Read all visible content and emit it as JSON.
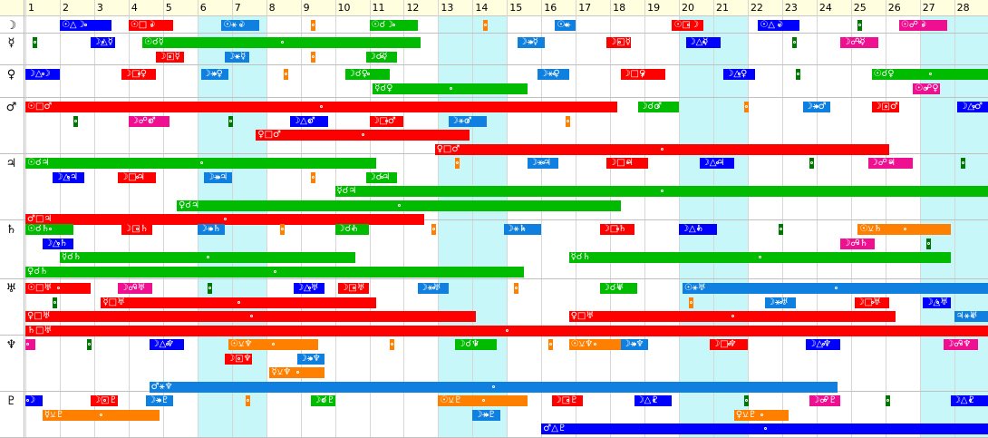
{
  "day_labels": [
    "1",
    "2",
    "3",
    "4",
    "5",
    "6",
    "7",
    "8",
    "9",
    "10",
    "11",
    "12",
    "13",
    "14",
    "15",
    "16",
    "17",
    "18",
    "19",
    "20",
    "21",
    "22",
    "23",
    "24",
    "25",
    "26",
    "27",
    "28"
  ],
  "planet_labels": [
    "☽",
    "☿",
    "♀",
    "♂",
    "♃",
    "♄",
    "♅",
    "♆",
    "♇"
  ],
  "weekend_days": [
    6,
    7,
    13,
    14,
    20,
    21,
    27,
    28
  ],
  "colors": {
    "red": "#ff0000",
    "green": "#00bb00",
    "blue": "#0000ff",
    "azure": "#1080e0",
    "orange": "#ff8000",
    "magenta": "#ee1090",
    "darkgreen": "#007700",
    "weekend": "#c8f7fa",
    "header": "#ffffdf"
  },
  "events": [
    {
      "row": 0,
      "lane": 0,
      "start": 2.0,
      "end": 3.5,
      "color": "blue",
      "label": "☉△☽"
    },
    {
      "row": 0,
      "lane": 0,
      "start": 4.0,
      "end": 5.3,
      "color": "red",
      "label": "☉□☽"
    },
    {
      "row": 0,
      "lane": 0,
      "start": 6.7,
      "end": 7.8,
      "color": "azure",
      "label": "☉⚹☽"
    },
    {
      "row": 0,
      "lane": 0,
      "start": 9.3,
      "end": 9.4,
      "color": "orange",
      "label": ""
    },
    {
      "row": 0,
      "lane": 0,
      "start": 11.0,
      "end": 12.4,
      "color": "green",
      "label": "☉☌☽"
    },
    {
      "row": 0,
      "lane": 0,
      "start": 14.3,
      "end": 14.4,
      "color": "orange",
      "label": ""
    },
    {
      "row": 0,
      "lane": 0,
      "start": 16.4,
      "end": 17.0,
      "color": "azure",
      "label": "☉⚹"
    },
    {
      "row": 0,
      "lane": 0,
      "start": 19.8,
      "end": 20.7,
      "color": "red",
      "label": "☉□☽"
    },
    {
      "row": 0,
      "lane": 0,
      "start": 22.3,
      "end": 23.5,
      "color": "blue",
      "label": "☉△☽"
    },
    {
      "row": 0,
      "lane": 0,
      "start": 25.2,
      "end": 25.3,
      "color": "darkgreen",
      "label": ""
    },
    {
      "row": 0,
      "lane": 0,
      "start": 26.4,
      "end": 27.8,
      "color": "magenta",
      "label": "☉☍☽"
    },
    {
      "row": 1,
      "lane": 0,
      "start": 1.2,
      "end": 1.3,
      "color": "darkgreen",
      "label": ""
    },
    {
      "row": 1,
      "lane": 0,
      "start": 2.9,
      "end": 3.6,
      "color": "blue",
      "label": "☽△☿"
    },
    {
      "row": 1,
      "lane": 0,
      "start": 4.4,
      "end": 12.5,
      "color": "green",
      "label": "☉☌☿"
    },
    {
      "row": 1,
      "lane": 0,
      "start": 15.3,
      "end": 16.1,
      "color": "azure",
      "label": "☽⚹☿"
    },
    {
      "row": 1,
      "lane": 0,
      "start": 17.9,
      "end": 18.6,
      "color": "red",
      "label": "☽□☿"
    },
    {
      "row": 1,
      "lane": 0,
      "start": 20.2,
      "end": 21.2,
      "color": "blue",
      "label": "☽△☿"
    },
    {
      "row": 1,
      "lane": 0,
      "start": 23.3,
      "end": 23.4,
      "color": "darkgreen",
      "label": ""
    },
    {
      "row": 1,
      "lane": 0,
      "start": 24.7,
      "end": 25.8,
      "color": "magenta",
      "label": "☽☍☿"
    },
    {
      "row": 1,
      "lane": 1,
      "start": 4.8,
      "end": 5.6,
      "color": "red",
      "label": "☽□☿"
    },
    {
      "row": 1,
      "lane": 1,
      "start": 6.8,
      "end": 7.5,
      "color": "azure",
      "label": "☽⚹☿"
    },
    {
      "row": 1,
      "lane": 1,
      "start": 9.3,
      "end": 9.4,
      "color": "orange",
      "label": ""
    },
    {
      "row": 1,
      "lane": 1,
      "start": 10.9,
      "end": 11.8,
      "color": "green",
      "label": "☽☌☿"
    },
    {
      "row": 2,
      "lane": 0,
      "start": 1.0,
      "end": 2.0,
      "color": "blue",
      "label": "☽△☽"
    },
    {
      "row": 2,
      "lane": 0,
      "start": 3.8,
      "end": 4.8,
      "color": "red",
      "label": "☽□♀"
    },
    {
      "row": 2,
      "lane": 0,
      "start": 6.1,
      "end": 6.9,
      "color": "azure",
      "label": "☽⚹♀"
    },
    {
      "row": 2,
      "lane": 0,
      "start": 8.5,
      "end": 8.6,
      "color": "orange",
      "label": ""
    },
    {
      "row": 2,
      "lane": 0,
      "start": 10.3,
      "end": 11.6,
      "color": "green",
      "label": "☽☌♀"
    },
    {
      "row": 2,
      "lane": 0,
      "start": 15.9,
      "end": 16.8,
      "color": "azure",
      "label": "☽⚹♀"
    },
    {
      "row": 2,
      "lane": 0,
      "start": 18.3,
      "end": 19.6,
      "color": "red",
      "label": "☽□♀"
    },
    {
      "row": 2,
      "lane": 0,
      "start": 21.3,
      "end": 22.2,
      "color": "blue",
      "label": "☽△♀"
    },
    {
      "row": 2,
      "lane": 0,
      "start": 23.4,
      "end": 23.5,
      "color": "darkgreen",
      "label": ""
    },
    {
      "row": 2,
      "lane": 0,
      "start": 25.6,
      "end": 29.0,
      "color": "green",
      "label": "☉☌♀"
    },
    {
      "row": 2,
      "lane": 1,
      "start": 11.1,
      "end": 15.6,
      "color": "green",
      "label": "☿☌♀"
    },
    {
      "row": 2,
      "lane": 1,
      "start": 26.8,
      "end": 27.6,
      "color": "magenta",
      "label": "☉☍♀"
    },
    {
      "row": 3,
      "lane": 0,
      "start": 1.0,
      "end": 18.2,
      "color": "red",
      "label": "☉□♂"
    },
    {
      "row": 3,
      "lane": 0,
      "start": 18.8,
      "end": 20.0,
      "color": "green",
      "label": "☽☌♂"
    },
    {
      "row": 3,
      "lane": 0,
      "start": 21.9,
      "end": 22.0,
      "color": "orange",
      "label": ""
    },
    {
      "row": 3,
      "lane": 0,
      "start": 23.6,
      "end": 24.4,
      "color": "azure",
      "label": "☽⚹♂"
    },
    {
      "row": 3,
      "lane": 0,
      "start": 25.6,
      "end": 26.4,
      "color": "red",
      "label": "☽□♂"
    },
    {
      "row": 3,
      "lane": 0,
      "start": 28.1,
      "end": 29.0,
      "color": "blue",
      "label": "☽△♂"
    },
    {
      "row": 3,
      "lane": 1,
      "start": 2.4,
      "end": 2.5,
      "color": "darkgreen",
      "label": ""
    },
    {
      "row": 3,
      "lane": 1,
      "start": 4.0,
      "end": 5.2,
      "color": "magenta",
      "label": "☽☍♂"
    },
    {
      "row": 3,
      "lane": 1,
      "start": 6.9,
      "end": 7.0,
      "color": "darkgreen",
      "label": ""
    },
    {
      "row": 3,
      "lane": 1,
      "start": 8.7,
      "end": 9.8,
      "color": "blue",
      "label": "☽△♂"
    },
    {
      "row": 3,
      "lane": 1,
      "start": 11.0,
      "end": 12.0,
      "color": "red",
      "label": "☽□♂"
    },
    {
      "row": 3,
      "lane": 1,
      "start": 13.3,
      "end": 14.4,
      "color": "azure",
      "label": "☽⚹♂"
    },
    {
      "row": 3,
      "lane": 1,
      "start": 16.7,
      "end": 16.8,
      "color": "orange",
      "label": ""
    },
    {
      "row": 3,
      "lane": 2,
      "start": 7.7,
      "end": 13.9,
      "color": "red",
      "label": "♀□♂"
    },
    {
      "row": 3,
      "lane": 3,
      "start": 12.9,
      "end": 26.1,
      "color": "red",
      "label": "♀□♂"
    },
    {
      "row": 4,
      "lane": 0,
      "start": 1.0,
      "end": 11.2,
      "color": "green",
      "label": "☉☌♃"
    },
    {
      "row": 4,
      "lane": 0,
      "start": 13.5,
      "end": 13.6,
      "color": "orange",
      "label": ""
    },
    {
      "row": 4,
      "lane": 0,
      "start": 15.6,
      "end": 16.5,
      "color": "azure",
      "label": "☽⚹♃"
    },
    {
      "row": 4,
      "lane": 0,
      "start": 17.9,
      "end": 19.1,
      "color": "red",
      "label": "☽□♃"
    },
    {
      "row": 4,
      "lane": 0,
      "start": 20.6,
      "end": 21.6,
      "color": "blue",
      "label": "☽△♃"
    },
    {
      "row": 4,
      "lane": 0,
      "start": 23.8,
      "end": 23.9,
      "color": "darkgreen",
      "label": ""
    },
    {
      "row": 4,
      "lane": 0,
      "start": 25.5,
      "end": 26.8,
      "color": "magenta",
      "label": "☽☍♃"
    },
    {
      "row": 4,
      "lane": 0,
      "start": 28.2,
      "end": 28.3,
      "color": "darkgreen",
      "label": ""
    },
    {
      "row": 4,
      "lane": 1,
      "start": 1.8,
      "end": 2.7,
      "color": "blue",
      "label": "☽△♃"
    },
    {
      "row": 4,
      "lane": 1,
      "start": 3.7,
      "end": 4.8,
      "color": "red",
      "label": "☽□♃"
    },
    {
      "row": 4,
      "lane": 1,
      "start": 6.2,
      "end": 7.0,
      "color": "azure",
      "label": "☽⚹♃"
    },
    {
      "row": 4,
      "lane": 1,
      "start": 9.3,
      "end": 9.4,
      "color": "orange",
      "label": ""
    },
    {
      "row": 4,
      "lane": 1,
      "start": 10.9,
      "end": 11.8,
      "color": "green",
      "label": "☽☌♃"
    },
    {
      "row": 4,
      "lane": 2,
      "start": 10.0,
      "end": 29.0,
      "color": "green",
      "label": "☿☌♃"
    },
    {
      "row": 4,
      "lane": 3,
      "start": 5.4,
      "end": 18.3,
      "color": "green",
      "label": "♀☌♃"
    },
    {
      "row": 4,
      "lane": 4,
      "start": 1.0,
      "end": 12.6,
      "color": "red",
      "label": "♂□♃"
    },
    {
      "row": 5,
      "lane": 0,
      "start": 1.0,
      "end": 2.4,
      "color": "green",
      "label": "☉☌♄"
    },
    {
      "row": 5,
      "lane": 0,
      "start": 3.8,
      "end": 4.7,
      "color": "red",
      "label": "☽□♄"
    },
    {
      "row": 5,
      "lane": 0,
      "start": 6.0,
      "end": 6.8,
      "color": "azure",
      "label": "☽⚹♄"
    },
    {
      "row": 5,
      "lane": 0,
      "start": 8.4,
      "end": 8.5,
      "color": "orange",
      "label": ""
    },
    {
      "row": 5,
      "lane": 0,
      "start": 10.0,
      "end": 11.0,
      "color": "green",
      "label": "☽☌♄"
    },
    {
      "row": 5,
      "lane": 0,
      "start": 12.8,
      "end": 12.9,
      "color": "orange",
      "label": ""
    },
    {
      "row": 5,
      "lane": 0,
      "start": 14.9,
      "end": 16.0,
      "color": "azure",
      "label": "☽⚹♄"
    },
    {
      "row": 5,
      "lane": 0,
      "start": 17.7,
      "end": 18.7,
      "color": "red",
      "label": "☽□♄"
    },
    {
      "row": 5,
      "lane": 0,
      "start": 20.0,
      "end": 21.1,
      "color": "blue",
      "label": "☽△♄"
    },
    {
      "row": 5,
      "lane": 0,
      "start": 22.9,
      "end": 23.0,
      "color": "darkgreen",
      "label": ""
    },
    {
      "row": 5,
      "lane": 0,
      "start": 25.2,
      "end": 27.9,
      "color": "orange",
      "label": "☉⚺♄"
    },
    {
      "row": 5,
      "lane": 1,
      "start": 1.5,
      "end": 2.4,
      "color": "blue",
      "label": "☽△♄"
    },
    {
      "row": 5,
      "lane": 1,
      "start": 24.7,
      "end": 25.7,
      "color": "magenta",
      "label": "☽☍♄"
    },
    {
      "row": 5,
      "lane": 1,
      "start": 27.2,
      "end": 27.3,
      "color": "darkgreen",
      "label": ""
    },
    {
      "row": 5,
      "lane": 2,
      "start": 2.0,
      "end": 10.6,
      "color": "green",
      "label": "☿☌♄"
    },
    {
      "row": 5,
      "lane": 2,
      "start": 16.8,
      "end": 27.9,
      "color": "green",
      "label": "☿☌♄"
    },
    {
      "row": 5,
      "lane": 3,
      "start": 1.0,
      "end": 15.5,
      "color": "green",
      "label": "♀☌♄"
    },
    {
      "row": 6,
      "lane": 0,
      "start": 1.0,
      "end": 2.9,
      "color": "red",
      "label": "☉□♅"
    },
    {
      "row": 6,
      "lane": 0,
      "start": 3.7,
      "end": 4.7,
      "color": "magenta",
      "label": "☽☍♅"
    },
    {
      "row": 6,
      "lane": 0,
      "start": 6.3,
      "end": 6.4,
      "color": "darkgreen",
      "label": ""
    },
    {
      "row": 6,
      "lane": 0,
      "start": 8.8,
      "end": 9.7,
      "color": "blue",
      "label": "☽△♅"
    },
    {
      "row": 6,
      "lane": 0,
      "start": 10.1,
      "end": 11.0,
      "color": "red",
      "label": "☽□♅"
    },
    {
      "row": 6,
      "lane": 0,
      "start": 12.4,
      "end": 13.3,
      "color": "azure",
      "label": "☽⚹♅"
    },
    {
      "row": 6,
      "lane": 0,
      "start": 15.2,
      "end": 15.3,
      "color": "orange",
      "label": ""
    },
    {
      "row": 6,
      "lane": 0,
      "start": 17.7,
      "end": 18.8,
      "color": "green",
      "label": "☽☌♅"
    },
    {
      "row": 6,
      "lane": 0,
      "start": 20.1,
      "end": 29.0,
      "color": "azure",
      "label": "☉⚹♅"
    },
    {
      "row": 6,
      "lane": 1,
      "start": 1.8,
      "end": 1.9,
      "color": "darkgreen",
      "label": ""
    },
    {
      "row": 6,
      "lane": 1,
      "start": 3.2,
      "end": 11.2,
      "color": "red",
      "label": "☿□♅"
    },
    {
      "row": 6,
      "lane": 1,
      "start": 20.3,
      "end": 20.4,
      "color": "orange",
      "label": ""
    },
    {
      "row": 6,
      "lane": 1,
      "start": 22.5,
      "end": 23.4,
      "color": "azure",
      "label": "☽⚹♅"
    },
    {
      "row": 6,
      "lane": 1,
      "start": 25.1,
      "end": 26.1,
      "color": "red",
      "label": "☽□♅"
    },
    {
      "row": 6,
      "lane": 1,
      "start": 27.1,
      "end": 27.9,
      "color": "blue",
      "label": "☽△♅"
    },
    {
      "row": 6,
      "lane": 2,
      "start": 1.0,
      "end": 14.1,
      "color": "red",
      "label": "♀□♅"
    },
    {
      "row": 6,
      "lane": 2,
      "start": 16.8,
      "end": 26.3,
      "color": "red",
      "label": "♀□♅"
    },
    {
      "row": 6,
      "lane": 2,
      "start": 28.0,
      "end": 29.0,
      "color": "azure",
      "label": "♃⚹♅"
    },
    {
      "row": 6,
      "lane": 3,
      "start": 1.0,
      "end": 29.0,
      "color": "red",
      "label": "♄□♅"
    },
    {
      "row": 7,
      "lane": 0,
      "start": 1.0,
      "end": 1.3,
      "color": "magenta",
      "label": ""
    },
    {
      "row": 7,
      "lane": 0,
      "start": 2.8,
      "end": 2.9,
      "color": "darkgreen",
      "label": ""
    },
    {
      "row": 7,
      "lane": 0,
      "start": 4.6,
      "end": 5.6,
      "color": "blue",
      "label": "☽△♆"
    },
    {
      "row": 7,
      "lane": 0,
      "start": 6.9,
      "end": 9.5,
      "color": "orange",
      "label": "☉⚺♆"
    },
    {
      "row": 7,
      "lane": 0,
      "start": 11.6,
      "end": 11.7,
      "color": "orange",
      "label": ""
    },
    {
      "row": 7,
      "lane": 0,
      "start": 13.5,
      "end": 14.7,
      "color": "green",
      "label": "☽☌♆"
    },
    {
      "row": 7,
      "lane": 0,
      "start": 16.2,
      "end": 16.3,
      "color": "orange",
      "label": ""
    },
    {
      "row": 7,
      "lane": 0,
      "start": 16.8,
      "end": 18.3,
      "color": "orange",
      "label": "☉⚺♆"
    },
    {
      "row": 7,
      "lane": 0,
      "start": 18.3,
      "end": 19.1,
      "color": "azure",
      "label": "☽⚹♆"
    },
    {
      "row": 7,
      "lane": 0,
      "start": 20.9,
      "end": 22.0,
      "color": "red",
      "label": "☽□♆"
    },
    {
      "row": 7,
      "lane": 0,
      "start": 23.7,
      "end": 24.7,
      "color": "blue",
      "label": "☽△♆"
    },
    {
      "row": 7,
      "lane": 0,
      "start": 27.7,
      "end": 28.7,
      "color": "magenta",
      "label": "☽☍♆"
    },
    {
      "row": 7,
      "lane": 1,
      "start": 6.8,
      "end": 7.6,
      "color": "red",
      "label": "☽□♆"
    },
    {
      "row": 7,
      "lane": 1,
      "start": 8.9,
      "end": 9.7,
      "color": "azure",
      "label": "☽⚹♆"
    },
    {
      "row": 7,
      "lane": 2,
      "start": 8.1,
      "end": 9.7,
      "color": "orange",
      "label": "☿⚺♆"
    },
    {
      "row": 7,
      "lane": 3,
      "start": 4.6,
      "end": 24.6,
      "color": "azure",
      "label": "♂⚹♆"
    },
    {
      "row": 8,
      "lane": 0,
      "start": 1.0,
      "end": 1.5,
      "color": "blue",
      "label": "☽"
    },
    {
      "row": 8,
      "lane": 0,
      "start": 2.9,
      "end": 3.7,
      "color": "red",
      "label": "☽□♇"
    },
    {
      "row": 8,
      "lane": 0,
      "start": 4.5,
      "end": 5.3,
      "color": "azure",
      "label": "☽⚹♇"
    },
    {
      "row": 8,
      "lane": 0,
      "start": 7.4,
      "end": 7.5,
      "color": "orange",
      "label": ""
    },
    {
      "row": 8,
      "lane": 0,
      "start": 9.3,
      "end": 10.0,
      "color": "green",
      "label": "☽☌♇"
    },
    {
      "row": 8,
      "lane": 0,
      "start": 13.0,
      "end": 15.6,
      "color": "orange",
      "label": "☉⚺♇"
    },
    {
      "row": 8,
      "lane": 0,
      "start": 16.3,
      "end": 17.2,
      "color": "red",
      "label": "☽□♇"
    },
    {
      "row": 8,
      "lane": 0,
      "start": 18.7,
      "end": 19.8,
      "color": "blue",
      "label": "☽△♇"
    },
    {
      "row": 8,
      "lane": 0,
      "start": 21.9,
      "end": 22.0,
      "color": "darkgreen",
      "label": ""
    },
    {
      "row": 8,
      "lane": 0,
      "start": 23.8,
      "end": 24.7,
      "color": "magenta",
      "label": "☽☍♇"
    },
    {
      "row": 8,
      "lane": 0,
      "start": 26.0,
      "end": 26.1,
      "color": "darkgreen",
      "label": ""
    },
    {
      "row": 8,
      "lane": 0,
      "start": 27.9,
      "end": 29.0,
      "color": "blue",
      "label": "☽△♇"
    },
    {
      "row": 8,
      "lane": 1,
      "start": 1.5,
      "end": 4.9,
      "color": "orange",
      "label": "☿⚺♇"
    },
    {
      "row": 8,
      "lane": 1,
      "start": 14.0,
      "end": 14.8,
      "color": "azure",
      "label": "☽⚹♇"
    },
    {
      "row": 8,
      "lane": 1,
      "start": 21.6,
      "end": 23.2,
      "color": "orange",
      "label": "♀⚺♇"
    },
    {
      "row": 8,
      "lane": 2,
      "start": 16.0,
      "end": 29.0,
      "color": "blue",
      "label": "♂△♇"
    }
  ]
}
